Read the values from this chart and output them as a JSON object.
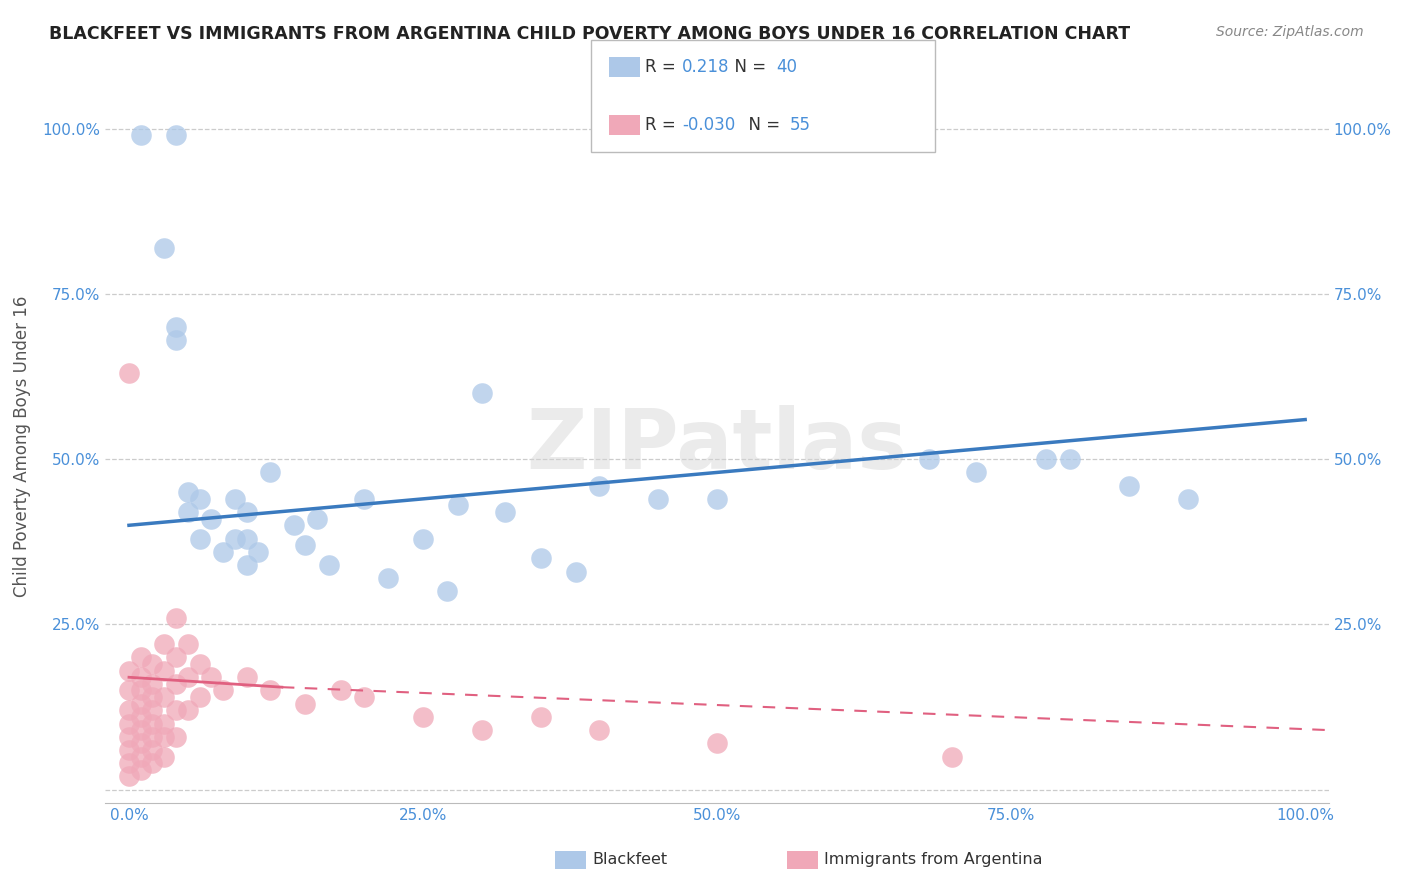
{
  "title": "BLACKFEET VS IMMIGRANTS FROM ARGENTINA CHILD POVERTY AMONG BOYS UNDER 16 CORRELATION CHART",
  "source": "Source: ZipAtlas.com",
  "ylabel": "Child Poverty Among Boys Under 16",
  "watermark": "ZIPatlas",
  "legend_blue_r": "0.218",
  "legend_blue_n": "40",
  "legend_pink_r": "-0.030",
  "legend_pink_n": "55",
  "blue_color": "#adc8e8",
  "pink_color": "#f0a8b8",
  "blue_line_color": "#3a7abf",
  "pink_line_color": "#e06080",
  "tick_color": "#4a90d9",
  "label_color": "#555555",
  "grid_color": "#cccccc",
  "background_color": "#ffffff",
  "blue_scatter": [
    [
      0.01,
      0.99
    ],
    [
      0.04,
      0.99
    ],
    [
      0.03,
      0.82
    ],
    [
      0.04,
      0.7
    ],
    [
      0.04,
      0.68
    ],
    [
      0.05,
      0.45
    ],
    [
      0.05,
      0.42
    ],
    [
      0.06,
      0.44
    ],
    [
      0.06,
      0.38
    ],
    [
      0.07,
      0.41
    ],
    [
      0.08,
      0.36
    ],
    [
      0.09,
      0.44
    ],
    [
      0.09,
      0.38
    ],
    [
      0.1,
      0.42
    ],
    [
      0.1,
      0.38
    ],
    [
      0.1,
      0.34
    ],
    [
      0.11,
      0.36
    ],
    [
      0.12,
      0.48
    ],
    [
      0.14,
      0.4
    ],
    [
      0.15,
      0.37
    ],
    [
      0.16,
      0.41
    ],
    [
      0.17,
      0.34
    ],
    [
      0.2,
      0.44
    ],
    [
      0.22,
      0.32
    ],
    [
      0.25,
      0.38
    ],
    [
      0.27,
      0.3
    ],
    [
      0.28,
      0.43
    ],
    [
      0.3,
      0.6
    ],
    [
      0.32,
      0.42
    ],
    [
      0.35,
      0.35
    ],
    [
      0.38,
      0.33
    ],
    [
      0.4,
      0.46
    ],
    [
      0.45,
      0.44
    ],
    [
      0.5,
      0.44
    ],
    [
      0.68,
      0.5
    ],
    [
      0.72,
      0.48
    ],
    [
      0.78,
      0.5
    ],
    [
      0.8,
      0.5
    ],
    [
      0.85,
      0.46
    ],
    [
      0.9,
      0.44
    ]
  ],
  "pink_scatter": [
    [
      0.0,
      0.63
    ],
    [
      0.0,
      0.18
    ],
    [
      0.0,
      0.15
    ],
    [
      0.0,
      0.12
    ],
    [
      0.0,
      0.1
    ],
    [
      0.0,
      0.08
    ],
    [
      0.0,
      0.06
    ],
    [
      0.0,
      0.04
    ],
    [
      0.0,
      0.02
    ],
    [
      0.01,
      0.2
    ],
    [
      0.01,
      0.17
    ],
    [
      0.01,
      0.15
    ],
    [
      0.01,
      0.13
    ],
    [
      0.01,
      0.11
    ],
    [
      0.01,
      0.09
    ],
    [
      0.01,
      0.07
    ],
    [
      0.01,
      0.05
    ],
    [
      0.01,
      0.03
    ],
    [
      0.02,
      0.19
    ],
    [
      0.02,
      0.16
    ],
    [
      0.02,
      0.14
    ],
    [
      0.02,
      0.12
    ],
    [
      0.02,
      0.1
    ],
    [
      0.02,
      0.08
    ],
    [
      0.02,
      0.06
    ],
    [
      0.02,
      0.04
    ],
    [
      0.03,
      0.22
    ],
    [
      0.03,
      0.18
    ],
    [
      0.03,
      0.14
    ],
    [
      0.03,
      0.1
    ],
    [
      0.03,
      0.08
    ],
    [
      0.03,
      0.05
    ],
    [
      0.04,
      0.26
    ],
    [
      0.04,
      0.2
    ],
    [
      0.04,
      0.16
    ],
    [
      0.04,
      0.12
    ],
    [
      0.04,
      0.08
    ],
    [
      0.05,
      0.22
    ],
    [
      0.05,
      0.17
    ],
    [
      0.05,
      0.12
    ],
    [
      0.06,
      0.19
    ],
    [
      0.06,
      0.14
    ],
    [
      0.07,
      0.17
    ],
    [
      0.08,
      0.15
    ],
    [
      0.1,
      0.17
    ],
    [
      0.12,
      0.15
    ],
    [
      0.15,
      0.13
    ],
    [
      0.18,
      0.15
    ],
    [
      0.2,
      0.14
    ],
    [
      0.25,
      0.11
    ],
    [
      0.3,
      0.09
    ],
    [
      0.35,
      0.11
    ],
    [
      0.4,
      0.09
    ],
    [
      0.5,
      0.07
    ],
    [
      0.7,
      0.05
    ]
  ],
  "xlim": [
    -0.02,
    1.02
  ],
  "ylim": [
    -0.02,
    1.06
  ],
  "xticks": [
    0.0,
    0.25,
    0.5,
    0.75,
    1.0
  ],
  "xticklabels": [
    "0.0%",
    "25.0%",
    "50.0%",
    "75.0%",
    "100.0%"
  ],
  "yticks": [
    0.0,
    0.25,
    0.5,
    0.75,
    1.0
  ],
  "ylabels_left": [
    "",
    "25.0%",
    "50.0%",
    "75.0%",
    "100.0%"
  ],
  "ylabels_right": [
    "",
    "25.0%",
    "50.0%",
    "75.0%",
    "100.0%"
  ]
}
